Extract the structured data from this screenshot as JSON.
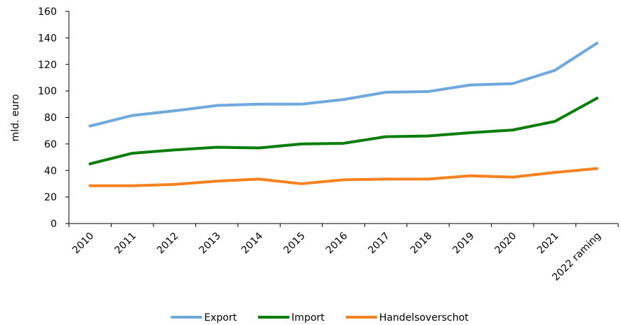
{
  "chart_data": {
    "type": "line",
    "title": "",
    "xlabel": "",
    "ylabel": "mld. euro",
    "ylim": [
      0,
      160
    ],
    "yticks": [
      0,
      20,
      40,
      60,
      80,
      100,
      120,
      140,
      160
    ],
    "categories": [
      "2010",
      "2011",
      "2012",
      "2013",
      "2014",
      "2015",
      "2016",
      "2017",
      "2018",
      "2019",
      "2020",
      "2021",
      "2022 raming"
    ],
    "grid": false,
    "legend_position": "bottom",
    "series": [
      {
        "name": "Export",
        "color": "#6fa8dc",
        "values": [
          73.5,
          81.5,
          85,
          89,
          90,
          90,
          93.5,
          99,
          99.5,
          104.5,
          105.5,
          115.5,
          136
        ]
      },
      {
        "name": "Import",
        "color": "#0a7d0a",
        "values": [
          45,
          53,
          55.5,
          57.5,
          57,
          60,
          60.5,
          65.5,
          66,
          68.5,
          70.5,
          77,
          94.5
        ]
      },
      {
        "name": "Handelsoverschot",
        "color": "#f58220",
        "values": [
          28.5,
          28.5,
          29.5,
          32,
          33.5,
          30,
          33,
          33.5,
          33.5,
          36,
          35,
          38.5,
          41.5
        ]
      }
    ]
  }
}
